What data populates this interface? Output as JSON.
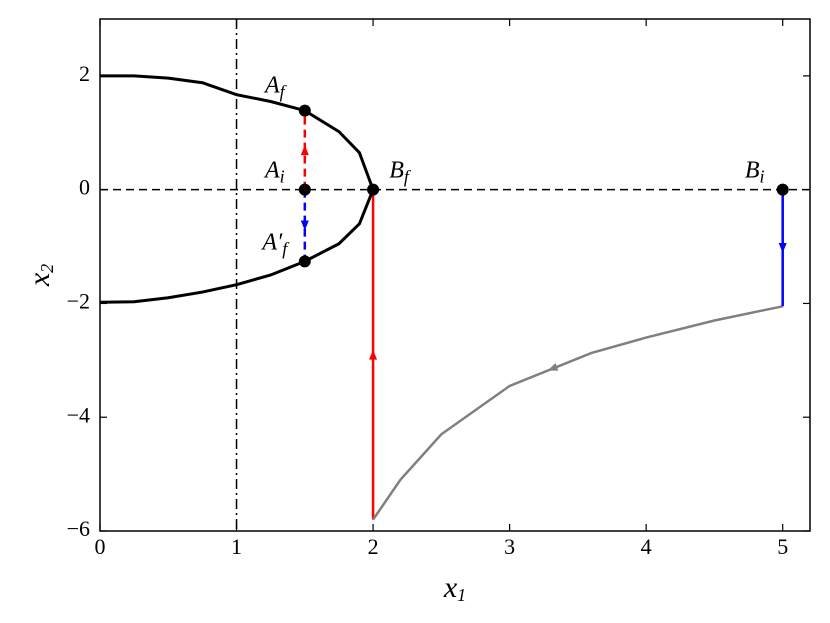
{
  "chart_data": {
    "type": "line",
    "xlim": [
      0,
      5.2
    ],
    "ylim": [
      -6,
      3
    ],
    "xticks": [
      0,
      1,
      2,
      3,
      4,
      5
    ],
    "yticks": [
      {
        "value": -6,
        "label": "−6"
      },
      {
        "value": -4,
        "label": "−4"
      },
      {
        "value": -2,
        "label": "−2"
      },
      0,
      2
    ],
    "xlabel": {
      "text": "x",
      "subscript": "1"
    },
    "ylabel": {
      "text": "x",
      "subscript": "2"
    },
    "reference_lines": [
      {
        "axis": "x",
        "value": 1,
        "style": "dashdot",
        "color": "#000000"
      },
      {
        "axis": "y",
        "value": 0,
        "style": "dashed",
        "color": "#000000"
      }
    ],
    "series": [
      {
        "color": "#000000",
        "style": "solid",
        "width": 3,
        "arrow": false,
        "x": [
          0,
          0.25,
          0.5,
          0.75,
          1.0,
          1.25,
          1.5,
          1.75,
          1.9,
          2.0,
          1.9,
          1.75,
          1.5,
          1.25,
          1.0,
          0.75,
          0.5,
          0.25,
          0
        ],
        "values": [
          2.0,
          2.0,
          1.96,
          1.88,
          1.67,
          1.55,
          1.39,
          1.02,
          0.65,
          0,
          -0.6,
          -0.95,
          -1.26,
          -1.5,
          -1.67,
          -1.8,
          -1.9,
          -1.97,
          -1.98
        ]
      },
      {
        "color": "#ff0000",
        "style": "solid",
        "width": 2.5,
        "arrow": true,
        "x": [
          2,
          2
        ],
        "values": [
          -5.8,
          0
        ]
      },
      {
        "color": "#808080",
        "style": "solid",
        "width": 2.5,
        "arrow": true,
        "x": [
          5,
          4.5,
          4,
          3.6,
          3,
          2.5,
          2.2,
          2
        ],
        "values": [
          -2.05,
          -2.3,
          -2.6,
          -2.87,
          -3.45,
          -4.3,
          -5.1,
          -5.8
        ]
      },
      {
        "color": "#0000ff",
        "style": "solid",
        "width": 2.5,
        "arrow": true,
        "x": [
          5,
          5
        ],
        "values": [
          0,
          -2.05
        ]
      },
      {
        "color": "#ff0000",
        "style": "dashed",
        "width": 2.5,
        "arrow": true,
        "x": [
          1.5,
          1.5
        ],
        "values": [
          0,
          1.39
        ]
      },
      {
        "color": "#0000ff",
        "style": "dashed",
        "width": 2.5,
        "arrow": true,
        "x": [
          1.5,
          1.5
        ],
        "values": [
          0,
          -1.26
        ]
      }
    ],
    "points": [
      {
        "x": 1.5,
        "y": 1.39,
        "label": "A",
        "subscript": "f"
      },
      {
        "x": 1.5,
        "y": 0,
        "label": "A",
        "subscript": "i"
      },
      {
        "x": 1.5,
        "y": -1.26,
        "label": "A′",
        "subscript": "f"
      },
      {
        "x": 2,
        "y": 0,
        "label": "B",
        "subscript": "f"
      },
      {
        "x": 5,
        "y": 0,
        "label": "B",
        "subscript": "i"
      }
    ]
  }
}
